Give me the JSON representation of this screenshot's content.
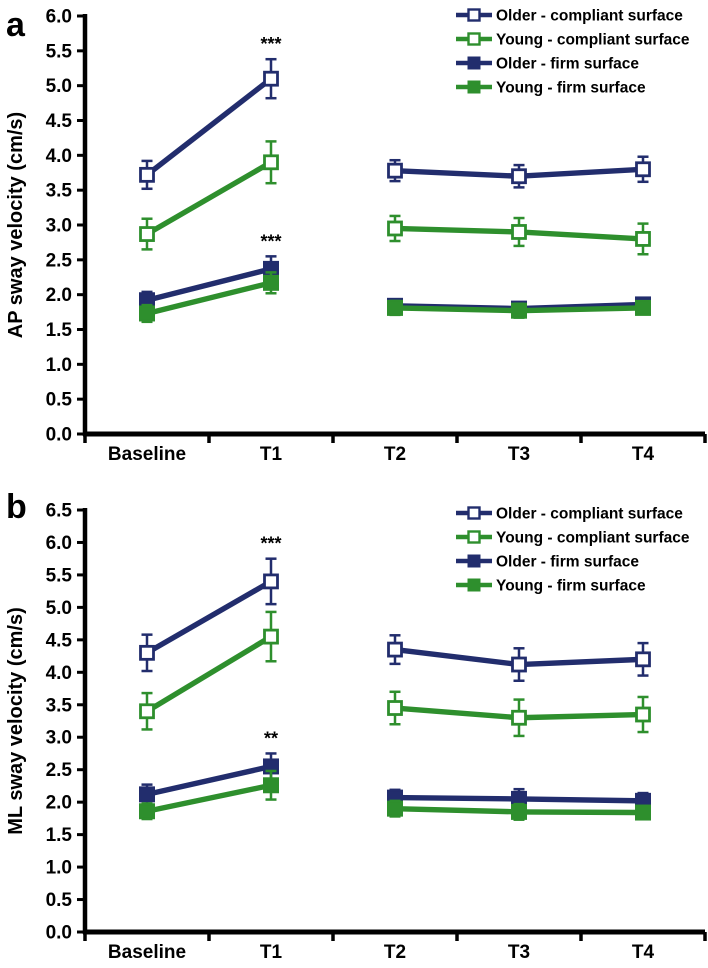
{
  "figure": {
    "description": "Two-panel line figure of postural sway velocity across time points",
    "colors": {
      "older": "#222d6d",
      "young": "#2e8f2d",
      "axis": "#000000",
      "background": "#ffffff"
    }
  },
  "chart_data": [
    {
      "type": "line",
      "panel_label": "a",
      "title": "",
      "xlabel": "",
      "ylabel": "AP sway velocity (cm/s)",
      "categories": [
        "Baseline",
        "T1",
        "T2",
        "T3",
        "T4"
      ],
      "ylim": [
        0.0,
        6.0
      ],
      "ytick_step": 0.5,
      "grid": false,
      "legend_position": "top-right",
      "line_break_after": "T1",
      "series": [
        {
          "name": "Older - compliant surface",
          "color": "#222d6d",
          "marker": "open-square",
          "values": [
            3.72,
            5.1,
            3.78,
            3.7,
            3.8
          ],
          "errors": [
            0.2,
            0.28,
            0.15,
            0.16,
            0.18
          ]
        },
        {
          "name": "Young - compliant surface",
          "color": "#2e8f2d",
          "marker": "open-square",
          "values": [
            2.87,
            3.9,
            2.95,
            2.9,
            2.8
          ],
          "errors": [
            0.22,
            0.3,
            0.18,
            0.2,
            0.22
          ]
        },
        {
          "name": "Older - firm surface",
          "color": "#222d6d",
          "marker": "filled-square",
          "values": [
            1.92,
            2.37,
            1.84,
            1.8,
            1.86
          ],
          "errors": [
            0.12,
            0.18,
            0.08,
            0.08,
            0.08
          ]
        },
        {
          "name": "Young - firm surface",
          "color": "#2e8f2d",
          "marker": "filled-square",
          "values": [
            1.73,
            2.17,
            1.81,
            1.77,
            1.81
          ],
          "errors": [
            0.12,
            0.15,
            0.1,
            0.1,
            0.08
          ]
        }
      ],
      "annotations": [
        {
          "text": "***",
          "category": "T1",
          "series": "Older - compliant surface"
        },
        {
          "text": "***",
          "category": "T1",
          "series": "Older - firm surface"
        }
      ]
    },
    {
      "type": "line",
      "panel_label": "b",
      "title": "",
      "xlabel": "",
      "ylabel": "ML sway velocity (cm/s)",
      "categories": [
        "Baseline",
        "T1",
        "T2",
        "T3",
        "T4"
      ],
      "ylim": [
        0.0,
        6.5
      ],
      "ytick_step": 0.5,
      "grid": false,
      "legend_position": "top-right",
      "line_break_after": "T1",
      "series": [
        {
          "name": "Older - compliant surface",
          "color": "#222d6d",
          "marker": "open-square",
          "values": [
            4.3,
            5.4,
            4.35,
            4.12,
            4.2
          ],
          "errors": [
            0.28,
            0.35,
            0.22,
            0.25,
            0.25
          ]
        },
        {
          "name": "Young - compliant surface",
          "color": "#2e8f2d",
          "marker": "open-square",
          "values": [
            3.4,
            4.55,
            3.45,
            3.3,
            3.35
          ],
          "errors": [
            0.28,
            0.38,
            0.25,
            0.28,
            0.27
          ]
        },
        {
          "name": "Older - firm surface",
          "color": "#222d6d",
          "marker": "filled-square",
          "values": [
            2.12,
            2.55,
            2.07,
            2.05,
            2.02
          ],
          "errors": [
            0.15,
            0.2,
            0.12,
            0.15,
            0.12
          ]
        },
        {
          "name": "Young - firm surface",
          "color": "#2e8f2d",
          "marker": "filled-square",
          "values": [
            1.86,
            2.26,
            1.9,
            1.85,
            1.84
          ],
          "errors": [
            0.12,
            0.22,
            0.12,
            0.12,
            0.1
          ]
        }
      ],
      "annotations": [
        {
          "text": "***",
          "category": "T1",
          "series": "Older - compliant surface"
        },
        {
          "text": "**",
          "category": "T1",
          "series": "Older - firm surface"
        }
      ]
    }
  ]
}
